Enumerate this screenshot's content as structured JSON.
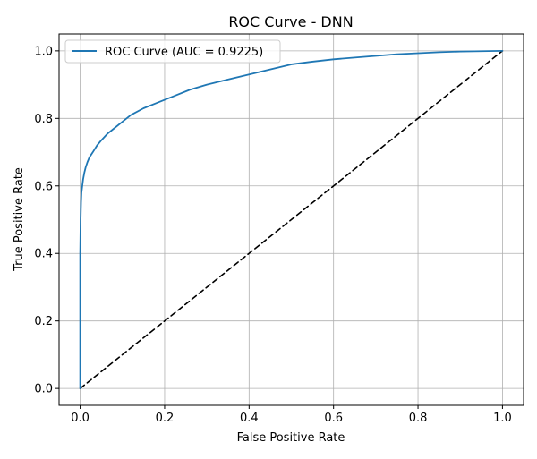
{
  "chart_data": {
    "type": "line",
    "title": "ROC Curve - DNN",
    "xlabel": "False Positive Rate",
    "ylabel": "True Positive Rate",
    "xlim": [
      -0.05,
      1.05
    ],
    "ylim": [
      -0.05,
      1.05
    ],
    "xticks": [
      0.0,
      0.2,
      0.4,
      0.6,
      0.8,
      1.0
    ],
    "yticks": [
      0.0,
      0.2,
      0.4,
      0.6,
      0.8,
      1.0
    ],
    "xtick_labels": [
      "0.0",
      "0.2",
      "0.4",
      "0.6",
      "0.8",
      "1.0"
    ],
    "ytick_labels": [
      "0.0",
      "0.2",
      "0.4",
      "0.6",
      "0.8",
      "1.0"
    ],
    "grid": true,
    "legend": {
      "position": "top-left",
      "entries": [
        "ROC Curve (AUC = 0.9225)"
      ]
    },
    "series": [
      {
        "name": "ROC Curve (AUC = 0.9225)",
        "color": "#1f77b4",
        "style": "solid",
        "x": [
          0.0,
          0.0,
          0.001,
          0.002,
          0.003,
          0.005,
          0.007,
          0.01,
          0.013,
          0.017,
          0.022,
          0.03,
          0.04,
          0.05,
          0.065,
          0.08,
          0.1,
          0.12,
          0.15,
          0.18,
          0.22,
          0.26,
          0.3,
          0.35,
          0.4,
          0.45,
          0.5,
          0.55,
          0.6,
          0.65,
          0.7,
          0.75,
          0.8,
          0.85,
          0.9,
          0.95,
          1.0
        ],
        "y": [
          0.0,
          0.4,
          0.5,
          0.55,
          0.58,
          0.6,
          0.62,
          0.64,
          0.655,
          0.67,
          0.685,
          0.7,
          0.72,
          0.735,
          0.755,
          0.77,
          0.79,
          0.81,
          0.83,
          0.845,
          0.865,
          0.885,
          0.9,
          0.915,
          0.93,
          0.945,
          0.96,
          0.968,
          0.975,
          0.98,
          0.985,
          0.99,
          0.993,
          0.996,
          0.998,
          0.999,
          1.0
        ]
      },
      {
        "color": "#000000",
        "style": "dashed",
        "x": [
          0.0,
          1.0
        ],
        "y": [
          0.0,
          1.0
        ]
      }
    ]
  }
}
